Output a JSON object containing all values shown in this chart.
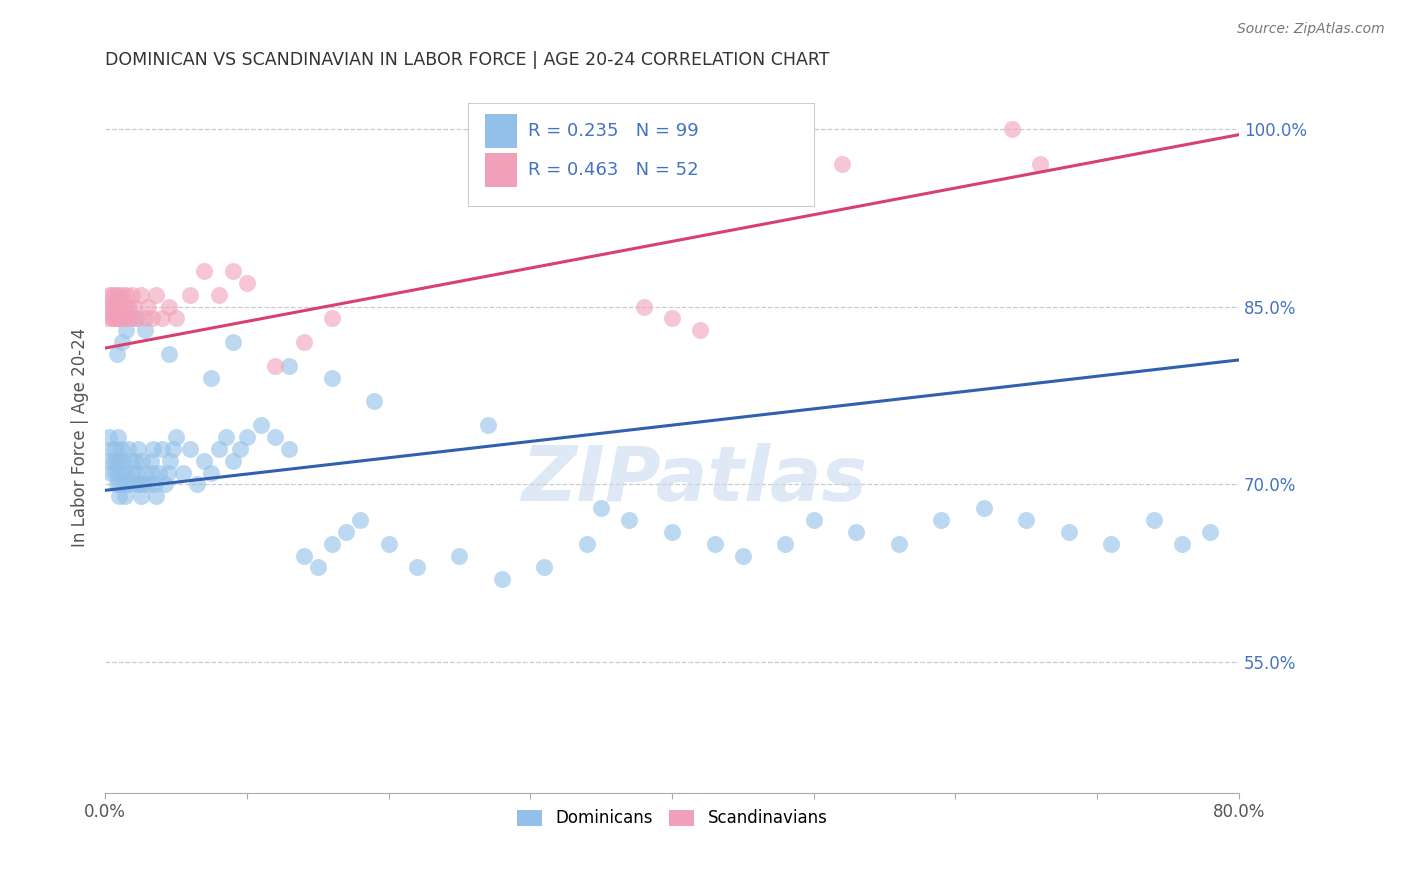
{
  "title": "DOMINICAN VS SCANDINAVIAN IN LABOR FORCE | AGE 20-24 CORRELATION CHART",
  "source": "Source: ZipAtlas.com",
  "ylabel": "In Labor Force | Age 20-24",
  "xlim": [
    0.0,
    0.8
  ],
  "ylim": [
    0.44,
    1.04
  ],
  "yticks": [
    0.55,
    0.7,
    0.85,
    1.0
  ],
  "ytick_labels": [
    "55.0%",
    "70.0%",
    "85.0%",
    "100.0%"
  ],
  "xticks": [
    0.0,
    0.1,
    0.2,
    0.3,
    0.4,
    0.5,
    0.6,
    0.7,
    0.8
  ],
  "xtick_labels": [
    "0.0%",
    "",
    "",
    "",
    "",
    "",
    "",
    "",
    "80.0%"
  ],
  "blue_color": "#92c0e8",
  "pink_color": "#f0a0b8",
  "trend_blue": "#3060b0",
  "trend_pink": "#d84070",
  "watermark": "ZIPatlas",
  "dominicans_x": [
    0.002,
    0.003,
    0.004,
    0.005,
    0.006,
    0.007,
    0.007,
    0.008,
    0.008,
    0.009,
    0.009,
    0.01,
    0.01,
    0.01,
    0.011,
    0.012,
    0.012,
    0.013,
    0.014,
    0.015,
    0.016,
    0.017,
    0.018,
    0.019,
    0.02,
    0.021,
    0.022,
    0.023,
    0.024,
    0.025,
    0.026,
    0.027,
    0.028,
    0.03,
    0.032,
    0.033,
    0.034,
    0.035,
    0.036,
    0.038,
    0.04,
    0.042,
    0.044,
    0.046,
    0.048,
    0.05,
    0.055,
    0.06,
    0.065,
    0.07,
    0.075,
    0.08,
    0.085,
    0.09,
    0.095,
    0.1,
    0.11,
    0.12,
    0.13,
    0.14,
    0.15,
    0.16,
    0.17,
    0.18,
    0.2,
    0.22,
    0.25,
    0.28,
    0.31,
    0.34,
    0.37,
    0.4,
    0.43,
    0.45,
    0.48,
    0.5,
    0.53,
    0.56,
    0.59,
    0.62,
    0.65,
    0.68,
    0.71,
    0.74,
    0.76,
    0.78,
    0.35,
    0.27,
    0.19,
    0.16,
    0.09,
    0.13,
    0.075,
    0.045,
    0.028,
    0.022,
    0.015,
    0.012,
    0.008
  ],
  "dominicans_y": [
    0.72,
    0.74,
    0.71,
    0.73,
    0.72,
    0.71,
    0.73,
    0.7,
    0.72,
    0.74,
    0.71,
    0.72,
    0.7,
    0.69,
    0.73,
    0.71,
    0.72,
    0.7,
    0.69,
    0.71,
    0.73,
    0.7,
    0.72,
    0.71,
    0.7,
    0.72,
    0.71,
    0.73,
    0.7,
    0.69,
    0.72,
    0.7,
    0.71,
    0.7,
    0.72,
    0.71,
    0.73,
    0.7,
    0.69,
    0.71,
    0.73,
    0.7,
    0.71,
    0.72,
    0.73,
    0.74,
    0.71,
    0.73,
    0.7,
    0.72,
    0.71,
    0.73,
    0.74,
    0.72,
    0.73,
    0.74,
    0.75,
    0.74,
    0.73,
    0.64,
    0.63,
    0.65,
    0.66,
    0.67,
    0.65,
    0.63,
    0.64,
    0.62,
    0.63,
    0.65,
    0.67,
    0.66,
    0.65,
    0.64,
    0.65,
    0.67,
    0.66,
    0.65,
    0.67,
    0.68,
    0.67,
    0.66,
    0.65,
    0.67,
    0.65,
    0.66,
    0.68,
    0.75,
    0.77,
    0.79,
    0.82,
    0.8,
    0.79,
    0.81,
    0.83,
    0.84,
    0.83,
    0.82,
    0.81
  ],
  "scandinavians_x": [
    0.001,
    0.002,
    0.003,
    0.004,
    0.005,
    0.005,
    0.006,
    0.006,
    0.007,
    0.007,
    0.008,
    0.008,
    0.009,
    0.009,
    0.01,
    0.01,
    0.011,
    0.012,
    0.013,
    0.014,
    0.015,
    0.016,
    0.017,
    0.018,
    0.019,
    0.02,
    0.022,
    0.025,
    0.028,
    0.03,
    0.033,
    0.036,
    0.04,
    0.045,
    0.05,
    0.06,
    0.07,
    0.08,
    0.09,
    0.1,
    0.12,
    0.14,
    0.16,
    0.38,
    0.4,
    0.42,
    0.44,
    0.46,
    0.49,
    0.52,
    0.64,
    0.66
  ],
  "scandinavians_y": [
    0.85,
    0.84,
    0.86,
    0.85,
    0.84,
    0.86,
    0.84,
    0.85,
    0.84,
    0.86,
    0.84,
    0.85,
    0.84,
    0.86,
    0.84,
    0.85,
    0.84,
    0.86,
    0.84,
    0.85,
    0.86,
    0.84,
    0.85,
    0.84,
    0.86,
    0.85,
    0.84,
    0.86,
    0.84,
    0.85,
    0.84,
    0.86,
    0.84,
    0.85,
    0.84,
    0.86,
    0.88,
    0.86,
    0.88,
    0.87,
    0.8,
    0.82,
    0.84,
    0.85,
    0.84,
    0.83,
    1.0,
    1.0,
    1.0,
    0.97,
    1.0,
    0.97
  ],
  "blue_trend_x0": 0.0,
  "blue_trend_y0": 0.695,
  "blue_trend_x1": 0.8,
  "blue_trend_y1": 0.805,
  "pink_trend_x0": 0.0,
  "pink_trend_y0": 0.815,
  "pink_trend_x1": 0.8,
  "pink_trend_y1": 0.995
}
